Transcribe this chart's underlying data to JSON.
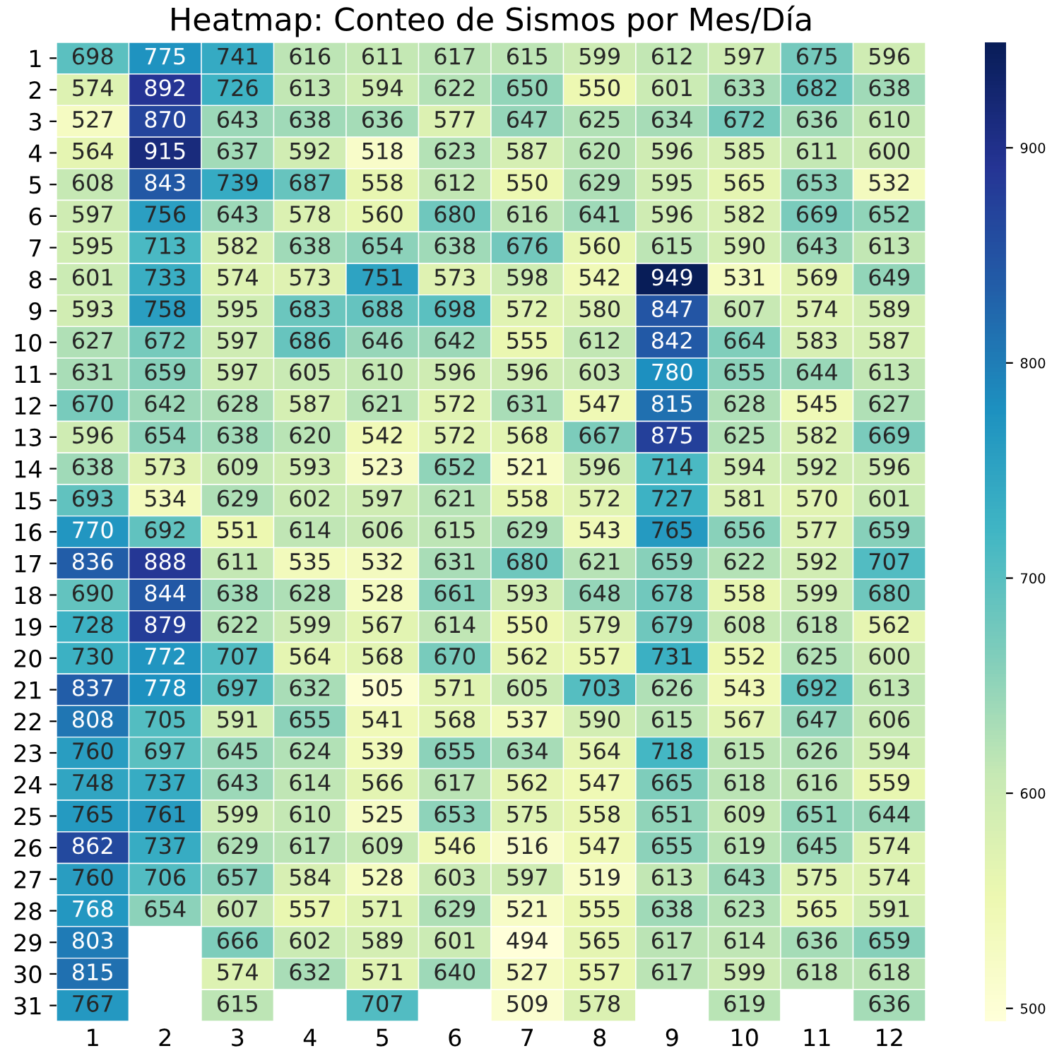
{
  "chart_data": {
    "type": "heatmap",
    "title": "Heatmap: Conteo de Sismos por Mes/Día",
    "categories": [
      "1",
      "2",
      "3",
      "4",
      "5",
      "6",
      "7",
      "8",
      "9",
      "10",
      "11",
      "12"
    ],
    "y_categories": [
      "1",
      "2",
      "3",
      "4",
      "5",
      "6",
      "7",
      "8",
      "9",
      "10",
      "11",
      "12",
      "13",
      "14",
      "15",
      "16",
      "17",
      "18",
      "19",
      "20",
      "21",
      "22",
      "23",
      "24",
      "25",
      "26",
      "27",
      "28",
      "29",
      "30",
      "31"
    ],
    "cells": [
      [
        698,
        775,
        741,
        616,
        611,
        617,
        615,
        599,
        612,
        597,
        675,
        596
      ],
      [
        574,
        892,
        726,
        613,
        594,
        622,
        650,
        550,
        601,
        633,
        682,
        638
      ],
      [
        527,
        870,
        643,
        638,
        636,
        577,
        647,
        625,
        634,
        672,
        636,
        610
      ],
      [
        564,
        915,
        637,
        592,
        518,
        623,
        587,
        620,
        596,
        585,
        611,
        600
      ],
      [
        608,
        843,
        739,
        687,
        558,
        612,
        550,
        629,
        595,
        565,
        653,
        532
      ],
      [
        597,
        756,
        643,
        578,
        560,
        680,
        616,
        641,
        596,
        582,
        669,
        652
      ],
      [
        595,
        713,
        582,
        638,
        654,
        638,
        676,
        560,
        615,
        590,
        643,
        613
      ],
      [
        601,
        733,
        574,
        573,
        751,
        573,
        598,
        542,
        949,
        531,
        569,
        649
      ],
      [
        593,
        758,
        595,
        683,
        688,
        698,
        572,
        580,
        847,
        607,
        574,
        589
      ],
      [
        627,
        672,
        597,
        686,
        646,
        642,
        555,
        612,
        842,
        664,
        583,
        587
      ],
      [
        631,
        659,
        597,
        605,
        610,
        596,
        596,
        603,
        780,
        655,
        644,
        613
      ],
      [
        670,
        642,
        628,
        587,
        621,
        572,
        631,
        547,
        815,
        628,
        545,
        627
      ],
      [
        596,
        654,
        638,
        620,
        542,
        572,
        568,
        667,
        875,
        625,
        582,
        669
      ],
      [
        638,
        573,
        609,
        593,
        523,
        652,
        521,
        596,
        714,
        594,
        592,
        596
      ],
      [
        693,
        534,
        629,
        602,
        597,
        621,
        558,
        572,
        727,
        581,
        570,
        601
      ],
      [
        770,
        692,
        551,
        614,
        606,
        615,
        629,
        543,
        765,
        656,
        577,
        659
      ],
      [
        836,
        888,
        611,
        535,
        532,
        631,
        680,
        621,
        659,
        622,
        592,
        707
      ],
      [
        690,
        844,
        638,
        628,
        528,
        661,
        593,
        648,
        678,
        558,
        599,
        680
      ],
      [
        728,
        879,
        622,
        599,
        567,
        614,
        550,
        579,
        679,
        608,
        618,
        562
      ],
      [
        730,
        772,
        707,
        564,
        568,
        670,
        562,
        557,
        731,
        552,
        625,
        600
      ],
      [
        837,
        778,
        697,
        632,
        505,
        571,
        605,
        703,
        626,
        543,
        692,
        613
      ],
      [
        808,
        705,
        591,
        655,
        541,
        568,
        537,
        590,
        615,
        567,
        647,
        606
      ],
      [
        760,
        697,
        645,
        624,
        539,
        655,
        634,
        564,
        718,
        615,
        626,
        594
      ],
      [
        748,
        737,
        643,
        614,
        566,
        617,
        562,
        547,
        665,
        618,
        616,
        559
      ],
      [
        765,
        761,
        599,
        610,
        525,
        653,
        575,
        558,
        651,
        609,
        651,
        644
      ],
      [
        862,
        737,
        629,
        617,
        609,
        546,
        516,
        547,
        655,
        619,
        645,
        574
      ],
      [
        760,
        706,
        657,
        584,
        528,
        603,
        597,
        519,
        613,
        643,
        575,
        574
      ],
      [
        768,
        654,
        607,
        557,
        571,
        629,
        521,
        555,
        638,
        623,
        565,
        591
      ],
      [
        803,
        null,
        666,
        602,
        589,
        601,
        494,
        565,
        617,
        614,
        636,
        659
      ],
      [
        815,
        null,
        574,
        632,
        571,
        640,
        527,
        557,
        617,
        599,
        618,
        618
      ],
      [
        767,
        null,
        615,
        null,
        707,
        null,
        509,
        578,
        null,
        619,
        null,
        636
      ]
    ],
    "clim": [
      494,
      949
    ],
    "cticks": [
      500,
      600,
      700,
      800,
      900
    ],
    "data_labels": true
  }
}
